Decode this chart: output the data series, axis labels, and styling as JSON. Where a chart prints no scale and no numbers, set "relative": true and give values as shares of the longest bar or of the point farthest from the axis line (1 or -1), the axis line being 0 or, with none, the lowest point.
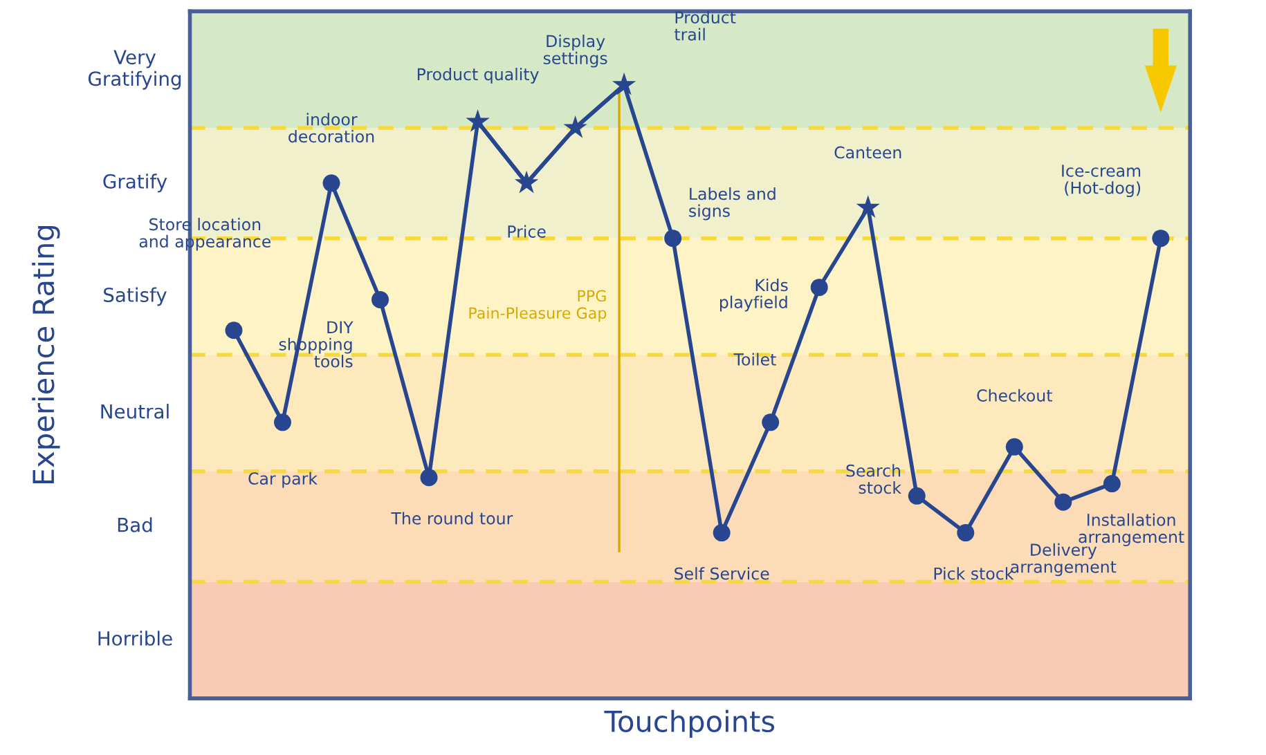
{
  "chart_data": {
    "type": "line",
    "xlabel": "Touchpoints",
    "ylabel": "Experience Rating",
    "relative": true,
    "categories": [
      null,
      null,
      null,
      null,
      null,
      null,
      null,
      null,
      null,
      null,
      null,
      null,
      null,
      null,
      null,
      null,
      null,
      null,
      null,
      null
    ],
    "annotations": [
      "Store location\nand appearance",
      "Car park",
      "indoor\ndecoration",
      "DIY\nshopping\ntools",
      "The round tour",
      "Product quality",
      "Price",
      "Display\nsettings",
      "Product\ntrail",
      "Labels and\nsigns",
      "Self Service",
      "Toilet",
      "Kids\nplayfield",
      "Canteen",
      "Search\nstock",
      "Pick stock",
      "Checkout",
      "Delivery\narrangement",
      "Installation\narrangement",
      "Ice-cream\n(Hot-dog)",
      "PPG\nPain-Pleasure Gap"
    ],
    "series": [
      {
        "color": "#27468f",
        "marker": "circle",
        "values": [
          0.6,
          0.45,
          0.84,
          0.65,
          0.36,
          0.94,
          0.84,
          0.93,
          1.0,
          0.75,
          0.27,
          0.45,
          0.67,
          0.8,
          0.33,
          0.27,
          0.41,
          0.32,
          0.35,
          0.75
        ]
      },
      {
        "type": "line",
        "color": "#27468f",
        "marker": "star",
        "values": [
          null,
          null,
          null,
          null,
          null,
          0.94,
          0.84,
          0.93,
          1.0,
          null,
          null,
          null,
          null,
          0.8,
          null,
          null,
          null,
          null,
          null,
          null
        ]
      }
    ],
    "bands": [
      {
        "axis": "y",
        "from": 0,
        "to": 0.19,
        "color": "#f8cbb6",
        "label": "Horrible"
      },
      {
        "axis": "y",
        "from": 0.19,
        "to": 0.37,
        "color": "#fbdcb7",
        "label": "Bad"
      },
      {
        "axis": "y",
        "from": 0.37,
        "to": 0.56,
        "color": "#fde9bb",
        "label": "Neutral"
      },
      {
        "axis": "y",
        "from": 0.56,
        "to": 0.75,
        "color": "#fdf3c4",
        "label": "Satisfy"
      },
      {
        "axis": "y",
        "from": 0.75,
        "to": 0.93,
        "color": "#f0f0cd",
        "label": "Gratify"
      },
      {
        "axis": "y",
        "from": 0.93,
        "to": 1.12,
        "color": "#d6e9c6",
        "label": "Very\nGratifying"
      }
    ],
    "ref_lines": [
      {
        "axis": "y",
        "value": 0.19,
        "color": "#f7d93c",
        "line_style": "dashed"
      },
      {
        "axis": "y",
        "value": 0.37,
        "color": "#f7d93c",
        "line_style": "dashed"
      },
      {
        "axis": "y",
        "value": 0.56,
        "color": "#f7d93c",
        "line_style": "dashed"
      },
      {
        "axis": "y",
        "value": 0.75,
        "color": "#f7d93c",
        "line_style": "dashed"
      },
      {
        "axis": "y",
        "value": 0.93,
        "color": "#f7d93c",
        "line_style": "dashed"
      }
    ]
  }
}
